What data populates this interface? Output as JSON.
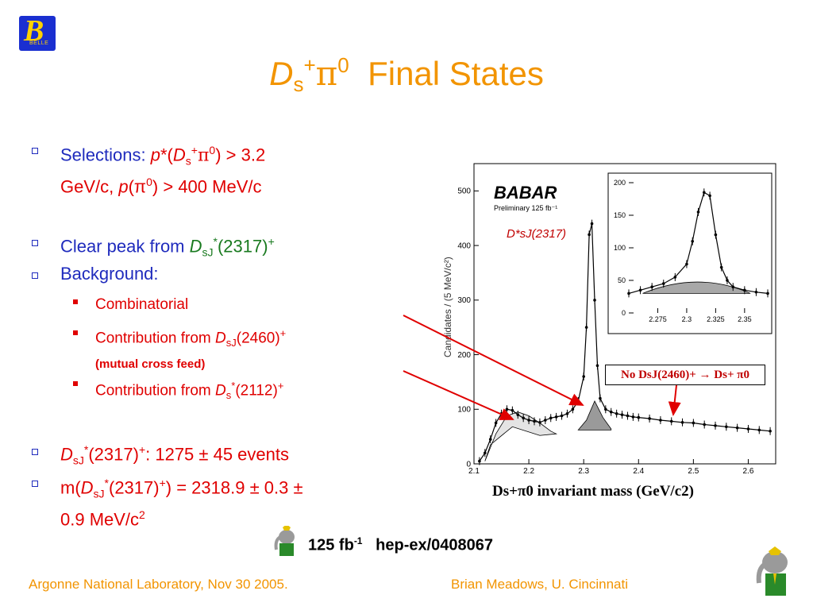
{
  "header": {
    "logo_text": "B",
    "logo_sub": "BELLE",
    "title_D": "D",
    "title_s": "s",
    "title_sup": "+",
    "title_pi": "π",
    "title_pi_sup": "0",
    "title_rest": "  Final States"
  },
  "bullets": {
    "selections_a": "Selections: ",
    "selections_p": "p",
    "selections_b": "*(",
    "selections_D": "D",
    "selections_s": "s",
    "selections_sup": "+",
    "selections_pi": "π",
    "selections_pi_sup": "0",
    "selections_c": ") > 3.2",
    "selections_line2a": "GeV/c, ",
    "selections_line2p": "p",
    "selections_line2b": "(π",
    "selections_line2sup": "0",
    "selections_line2c": ") > 400 MeV/c",
    "peak_a": "Clear peak from ",
    "peak_D": "D",
    "peak_sub": "sJ",
    "peak_sup": "*",
    "peak_b": "(2317)",
    "peak_sup2": "+",
    "background": "Background:",
    "sub1": "Combinatorial",
    "sub2_a": "Contribution from ",
    "sub2_D": "D",
    "sub2_sub": "sJ",
    "sub2_b": "(2460)",
    "sub2_sup": "+",
    "sub2_note": "(mutual cross feed)",
    "sub3_a": "Contribution from ",
    "sub3_D": "D",
    "sub3_sub": "s",
    "sub3_sup": "*",
    "sub3_b": "(2112)",
    "sub3_sup2": "+",
    "events_D": "D",
    "events_sub": "sJ",
    "events_sup": "*",
    "events_b": "(2317)",
    "events_sup2": "+",
    "events_c": ": 1275 ± 45 events",
    "mass_a": "m(",
    "mass_D": "D",
    "mass_sub": "sJ",
    "mass_sup": "*",
    "mass_b": "(2317)",
    "mass_sup2": "+",
    "mass_c": ") = 2318.9 ± 0.3 ±",
    "mass_line2": "0.9 MeV/c",
    "mass_line2_sup": "2"
  },
  "plot": {
    "babar_logo": "BABAR",
    "preliminary": "Preliminary 125 fb⁻¹",
    "peak_label": "D*sJ(2317)",
    "no_label": "No DsJ(2460)+ → Ds+ π0",
    "xaxis_label": "Ds+π0 invariant mass (GeV/c2)",
    "yaxis_label": "Candidates / (5 MeV/c²)"
  },
  "chart_data": [
    {
      "type": "line",
      "title": "",
      "xlabel": "Ds+π0 invariant mass (GeV/c2)",
      "ylabel": "Candidates / (5 MeV/c²)",
      "xlim": [
        2.1,
        2.65
      ],
      "ylim": [
        0,
        550
      ],
      "x_ticks": [
        "2.1",
        "2.2",
        "2.3",
        "2.4",
        "2.5",
        "2.6"
      ],
      "y_ticks": [
        "0",
        "100",
        "200",
        "300",
        "400",
        "500"
      ],
      "series": [
        {
          "name": "data",
          "x": [
            2.11,
            2.12,
            2.13,
            2.14,
            2.15,
            2.16,
            2.17,
            2.18,
            2.19,
            2.2,
            2.21,
            2.22,
            2.23,
            2.24,
            2.25,
            2.26,
            2.27,
            2.28,
            2.29,
            2.3,
            2.305,
            2.31,
            2.315,
            2.32,
            2.325,
            2.33,
            2.34,
            2.35,
            2.36,
            2.37,
            2.38,
            2.39,
            2.4,
            2.42,
            2.44,
            2.46,
            2.48,
            2.5,
            2.52,
            2.54,
            2.56,
            2.58,
            2.6,
            2.62,
            2.64
          ],
          "values": [
            5,
            20,
            45,
            75,
            92,
            100,
            98,
            90,
            84,
            80,
            78,
            76,
            80,
            84,
            86,
            88,
            92,
            100,
            115,
            160,
            250,
            420,
            440,
            300,
            180,
            120,
            100,
            95,
            92,
            90,
            88,
            86,
            85,
            83,
            80,
            78,
            76,
            75,
            72,
            70,
            68,
            66,
            64,
            62,
            60
          ]
        }
      ],
      "annotations": [
        "D*sJ(2317)",
        "No DsJ(2460)+ → Ds+ π0"
      ]
    },
    {
      "type": "line",
      "title": "",
      "xlim": [
        2.25,
        2.37
      ],
      "ylim": [
        0,
        200
      ],
      "x_ticks": [
        "2.275",
        "2.3",
        "2.325",
        "2.35"
      ],
      "y_ticks": [
        "0",
        "50",
        "100",
        "150",
        "200"
      ],
      "series": [
        {
          "name": "data",
          "x": [
            2.25,
            2.26,
            2.27,
            2.28,
            2.29,
            2.3,
            2.305,
            2.31,
            2.315,
            2.32,
            2.325,
            2.33,
            2.335,
            2.34,
            2.35,
            2.36,
            2.37
          ],
          "values": [
            30,
            35,
            40,
            45,
            55,
            75,
            110,
            155,
            185,
            180,
            120,
            70,
            50,
            40,
            35,
            32,
            30
          ]
        }
      ]
    }
  ],
  "footer": {
    "caption_a": "125 fb",
    "caption_sup": "-1",
    "caption_b": "   hep-ex/0408067",
    "left": "Argonne National Laboratory, Nov 30 2005.",
    "right": "Brian Meadows, U. Cincinnati"
  }
}
